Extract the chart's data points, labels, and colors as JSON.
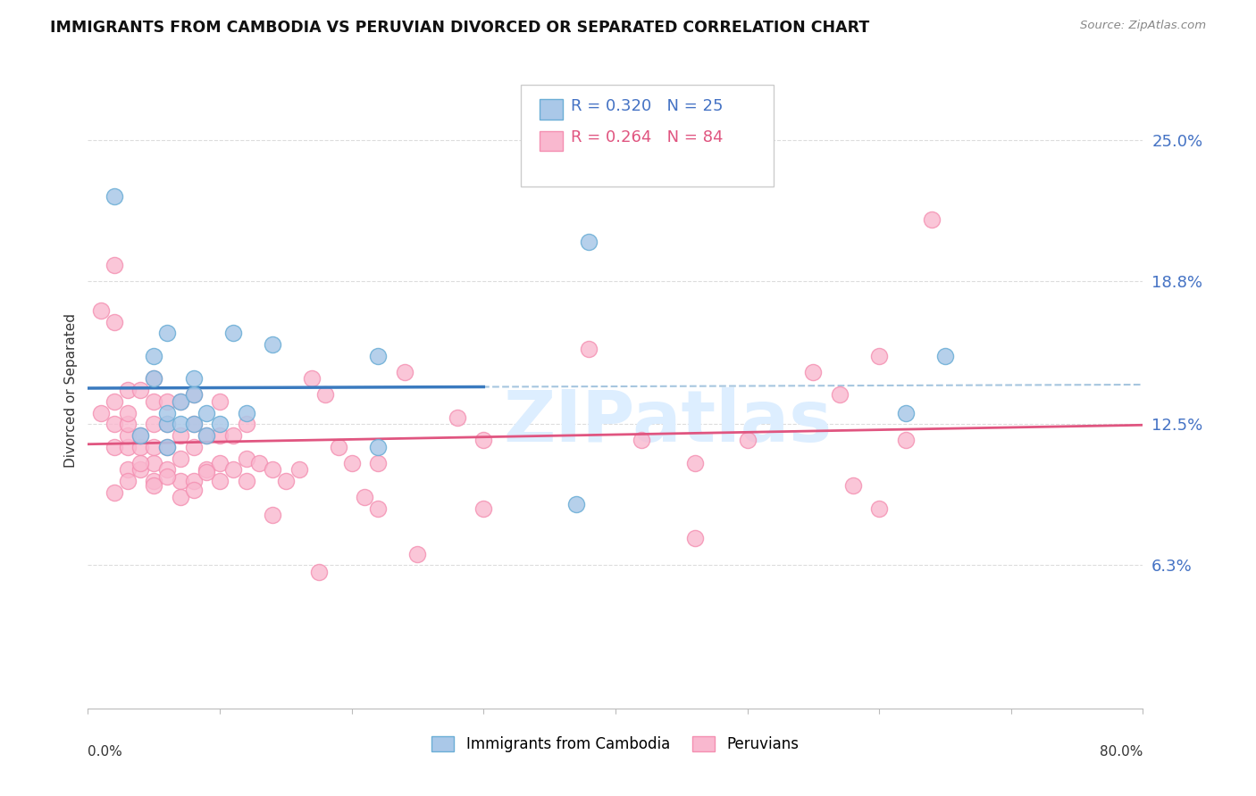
{
  "title": "IMMIGRANTS FROM CAMBODIA VS PERUVIAN DIVORCED OR SEPARATED CORRELATION CHART",
  "source": "Source: ZipAtlas.com",
  "ylabel": "Divorced or Separated",
  "ytick_values": [
    0.063,
    0.125,
    0.188,
    0.25
  ],
  "ytick_labels": [
    "6.3%",
    "12.5%",
    "18.8%",
    "25.0%"
  ],
  "xmin": 0.0,
  "xmax": 0.8,
  "ymin": 0.0,
  "ymax": 0.28,
  "legend_color1": "#6baed6",
  "legend_color2": "#f48fb1",
  "series1_color": "#aac8e8",
  "series2_color": "#f9b8cf",
  "line1_color": "#3a7abf",
  "line2_color": "#e05580",
  "dashed_color": "#90b8d8",
  "watermark_text": "ZIPatlas",
  "watermark_color": "#ddeeff",
  "grid_color": "#dddddd",
  "cambodia_x": [
    0.02,
    0.04,
    0.05,
    0.05,
    0.06,
    0.06,
    0.06,
    0.06,
    0.07,
    0.07,
    0.08,
    0.08,
    0.09,
    0.09,
    0.1,
    0.11,
    0.12,
    0.14,
    0.22,
    0.22,
    0.37,
    0.38,
    0.62,
    0.65,
    0.08
  ],
  "cambodia_y": [
    0.225,
    0.12,
    0.155,
    0.145,
    0.125,
    0.13,
    0.165,
    0.115,
    0.125,
    0.135,
    0.125,
    0.145,
    0.13,
    0.12,
    0.125,
    0.165,
    0.13,
    0.16,
    0.115,
    0.155,
    0.09,
    0.205,
    0.13,
    0.155,
    0.138
  ],
  "peruvian_x": [
    0.01,
    0.01,
    0.02,
    0.02,
    0.02,
    0.02,
    0.02,
    0.03,
    0.03,
    0.03,
    0.03,
    0.03,
    0.03,
    0.04,
    0.04,
    0.04,
    0.04,
    0.05,
    0.05,
    0.05,
    0.05,
    0.05,
    0.05,
    0.06,
    0.06,
    0.06,
    0.06,
    0.07,
    0.07,
    0.07,
    0.07,
    0.08,
    0.08,
    0.08,
    0.08,
    0.09,
    0.09,
    0.1,
    0.1,
    0.1,
    0.1,
    0.11,
    0.11,
    0.12,
    0.12,
    0.12,
    0.13,
    0.14,
    0.14,
    0.15,
    0.16,
    0.17,
    0.18,
    0.2,
    0.22,
    0.22,
    0.24,
    0.28,
    0.3,
    0.3,
    0.38,
    0.42,
    0.46,
    0.46,
    0.5,
    0.55,
    0.57,
    0.58,
    0.6,
    0.6,
    0.62,
    0.64,
    0.02,
    0.03,
    0.04,
    0.05,
    0.06,
    0.07,
    0.08,
    0.09,
    0.19,
    0.21,
    0.175,
    0.25
  ],
  "peruvian_y": [
    0.13,
    0.175,
    0.115,
    0.125,
    0.135,
    0.17,
    0.195,
    0.105,
    0.115,
    0.12,
    0.125,
    0.13,
    0.14,
    0.105,
    0.115,
    0.12,
    0.14,
    0.1,
    0.108,
    0.115,
    0.125,
    0.135,
    0.145,
    0.105,
    0.115,
    0.125,
    0.135,
    0.1,
    0.11,
    0.12,
    0.135,
    0.1,
    0.115,
    0.125,
    0.138,
    0.105,
    0.12,
    0.1,
    0.108,
    0.12,
    0.135,
    0.105,
    0.12,
    0.1,
    0.11,
    0.125,
    0.108,
    0.085,
    0.105,
    0.1,
    0.105,
    0.145,
    0.138,
    0.108,
    0.088,
    0.108,
    0.148,
    0.128,
    0.118,
    0.088,
    0.158,
    0.118,
    0.075,
    0.108,
    0.118,
    0.148,
    0.138,
    0.098,
    0.088,
    0.155,
    0.118,
    0.215,
    0.095,
    0.1,
    0.108,
    0.098,
    0.102,
    0.093,
    0.096,
    0.104,
    0.115,
    0.093,
    0.06,
    0.068
  ]
}
